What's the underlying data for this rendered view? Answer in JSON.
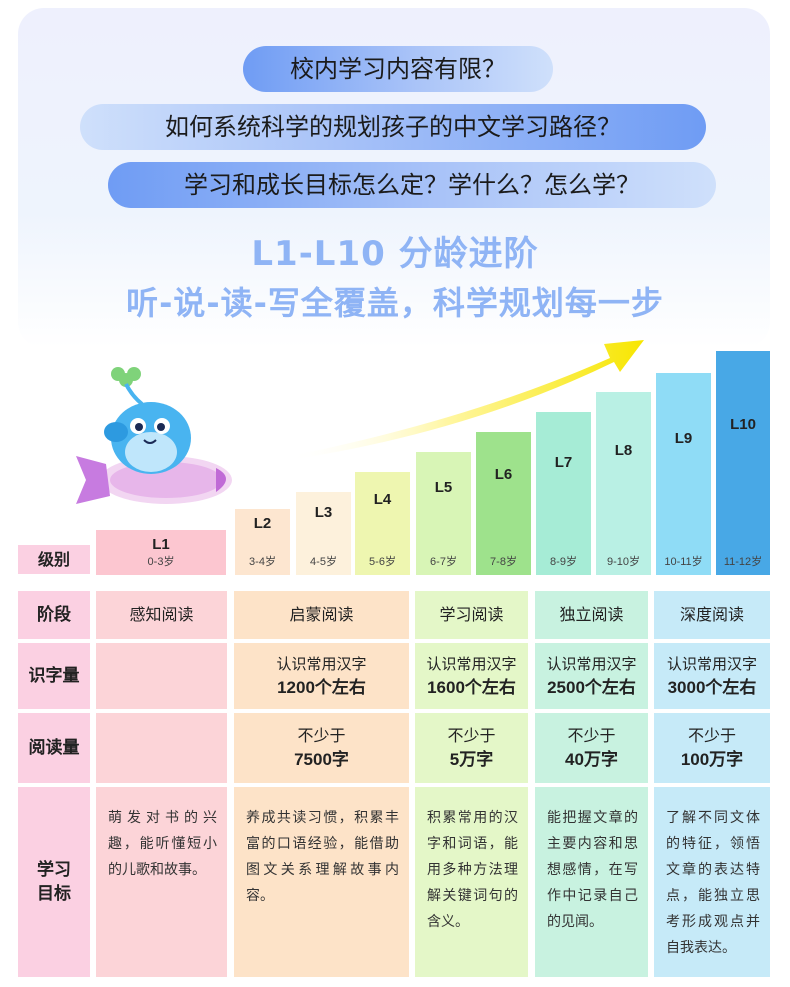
{
  "questions": [
    "校内学习内容有限？",
    "如何系统科学的规划孩子的中文学习路径？",
    "学习和成长目标怎么定？学什么？怎么学？"
  ],
  "headline1": "L1-L10 分龄进阶",
  "headline2": "听-说-读-写全覆盖，科学规划每一步",
  "level_row_label": "级别",
  "levels": [
    {
      "label": "L1",
      "age": "0-3岁",
      "color": "#fcc6d0"
    },
    {
      "label": "L2",
      "age": "3-4岁",
      "color": "#fde6d0"
    },
    {
      "label": "L3",
      "age": "4-5岁",
      "color": "#fdf1dc"
    },
    {
      "label": "L4",
      "age": "5-6岁",
      "color": "#eef6b0"
    },
    {
      "label": "L5",
      "age": "6-7岁",
      "color": "#d8f5b6"
    },
    {
      "label": "L6",
      "age": "7-8岁",
      "color": "#9ee28c"
    },
    {
      "label": "L7",
      "age": "8-9岁",
      "color": "#a6ecd6"
    },
    {
      "label": "L8",
      "age": "9-10岁",
      "color": "#b9f0e4"
    },
    {
      "label": "L9",
      "age": "10-11岁",
      "color": "#8fdcf6"
    },
    {
      "label": "L10",
      "age": "11-12岁",
      "color": "#48a8e6"
    }
  ],
  "table": {
    "row_labels": {
      "stage": "阶段",
      "characters": "识字量",
      "reading": "阅读量",
      "goal": "学习\n目标"
    },
    "stages": [
      "感知阅读",
      "启蒙阅读",
      "学习阅读",
      "独立阅读",
      "深度阅读"
    ],
    "characters": [
      {
        "line1": "",
        "line2": ""
      },
      {
        "line1": "认识常用汉字",
        "line2": "1200个左右"
      },
      {
        "line1": "认识常用汉字",
        "line2": "1600个左右"
      },
      {
        "line1": "认识常用汉字",
        "line2": "2500个左右"
      },
      {
        "line1": "认识常用汉字",
        "line2": "3000个左右"
      }
    ],
    "reading": [
      {
        "line1": "",
        "line2": ""
      },
      {
        "line1": "不少于",
        "line2": "7500字"
      },
      {
        "line1": "不少于",
        "line2": "5万字"
      },
      {
        "line1": "不少于",
        "line2": "40万字"
      },
      {
        "line1": "不少于",
        "line2": "100万字"
      }
    ],
    "goals": [
      "萌发对书的兴趣，能听懂短小的儿歌和故事。",
      "养成共读习惯，积累丰富的口语经验，能借助图文关系理解故事内容。",
      "积累常用的汉字和词语，能用多种方法理解关键词句的含义。",
      "能把握文章的主要内容和思想感情，在写作中记录自己的见闻。",
      "了解不同文体的特征，领悟文章的表达特点，能独立思考形成观点并自我表达。"
    ],
    "column_colors": [
      "#fcd4d8",
      "#fde3c8",
      "#e4f7c8",
      "#c8f2e0",
      "#c6eaf8"
    ]
  }
}
